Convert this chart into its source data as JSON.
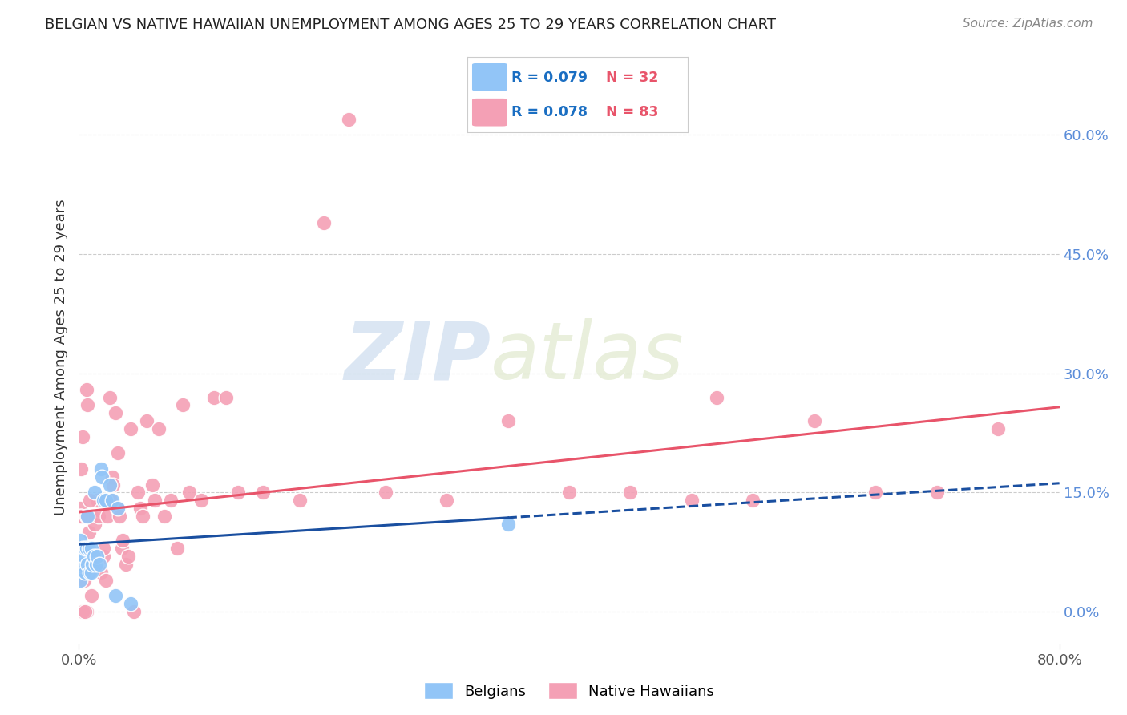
{
  "title": "BELGIAN VS NATIVE HAWAIIAN UNEMPLOYMENT AMONG AGES 25 TO 29 YEARS CORRELATION CHART",
  "source": "Source: ZipAtlas.com",
  "ylabel": "Unemployment Among Ages 25 to 29 years",
  "right_yticks": [
    0.0,
    0.15,
    0.3,
    0.45,
    0.6
  ],
  "right_ytick_labels": [
    "0.0%",
    "15.0%",
    "30.0%",
    "45.0%",
    "60.0%"
  ],
  "xlim": [
    0.0,
    0.8
  ],
  "ylim": [
    -0.04,
    0.68
  ],
  "belgians_color": "#92c5f7",
  "native_hawaiians_color": "#f4a0b5",
  "trend_belgian_color": "#1a4fa0",
  "trend_hawaiian_color": "#e8546a",
  "watermark_zip": "ZIP",
  "watermark_atlas": "atlas",
  "background_color": "#ffffff",
  "grid_color": "#cccccc",
  "belgians_x": [
    0.0,
    0.001,
    0.001,
    0.002,
    0.003,
    0.003,
    0.004,
    0.005,
    0.005,
    0.006,
    0.007,
    0.007,
    0.008,
    0.009,
    0.01,
    0.01,
    0.011,
    0.012,
    0.013,
    0.014,
    0.015,
    0.017,
    0.018,
    0.019,
    0.02,
    0.022,
    0.025,
    0.027,
    0.03,
    0.032,
    0.042,
    0.35
  ],
  "belgians_y": [
    0.05,
    0.04,
    0.09,
    0.07,
    0.06,
    0.08,
    0.07,
    0.05,
    0.08,
    0.08,
    0.12,
    0.06,
    0.08,
    0.05,
    0.08,
    0.05,
    0.06,
    0.07,
    0.15,
    0.06,
    0.07,
    0.06,
    0.18,
    0.17,
    0.14,
    0.14,
    0.16,
    0.14,
    0.02,
    0.13,
    0.01,
    0.11
  ],
  "native_hawaiians_x": [
    0.002,
    0.003,
    0.003,
    0.004,
    0.005,
    0.005,
    0.006,
    0.007,
    0.008,
    0.008,
    0.009,
    0.01,
    0.01,
    0.011,
    0.012,
    0.013,
    0.015,
    0.016,
    0.018,
    0.02,
    0.02,
    0.021,
    0.022,
    0.023,
    0.025,
    0.026,
    0.027,
    0.028,
    0.03,
    0.031,
    0.032,
    0.033,
    0.035,
    0.036,
    0.038,
    0.04,
    0.042,
    0.045,
    0.048,
    0.05,
    0.052,
    0.055,
    0.06,
    0.062,
    0.065,
    0.07,
    0.075,
    0.08,
    0.085,
    0.09,
    0.1,
    0.11,
    0.12,
    0.13,
    0.15,
    0.18,
    0.2,
    0.22,
    0.25,
    0.3,
    0.35,
    0.4,
    0.45,
    0.5,
    0.52,
    0.55,
    0.6,
    0.65,
    0.7,
    0.75,
    0.0,
    0.001,
    0.001,
    0.002,
    0.002,
    0.003,
    0.004,
    0.005,
    0.006,
    0.006,
    0.007,
    0.008,
    0.009
  ],
  "native_hawaiians_y": [
    0.18,
    0.12,
    0.22,
    0.0,
    0.07,
    0.05,
    0.0,
    0.12,
    0.07,
    0.1,
    0.08,
    0.05,
    0.02,
    0.12,
    0.06,
    0.11,
    0.14,
    0.12,
    0.05,
    0.07,
    0.08,
    0.14,
    0.04,
    0.12,
    0.27,
    0.14,
    0.17,
    0.16,
    0.25,
    0.13,
    0.2,
    0.12,
    0.08,
    0.09,
    0.06,
    0.07,
    0.23,
    0.0,
    0.15,
    0.13,
    0.12,
    0.24,
    0.16,
    0.14,
    0.23,
    0.12,
    0.14,
    0.08,
    0.26,
    0.15,
    0.14,
    0.27,
    0.27,
    0.15,
    0.15,
    0.14,
    0.49,
    0.62,
    0.15,
    0.14,
    0.24,
    0.15,
    0.15,
    0.14,
    0.27,
    0.14,
    0.24,
    0.15,
    0.15,
    0.23,
    0.12,
    0.13,
    0.08,
    0.12,
    0.12,
    0.0,
    0.04,
    0.0,
    0.28,
    0.12,
    0.26,
    0.05,
    0.14
  ]
}
